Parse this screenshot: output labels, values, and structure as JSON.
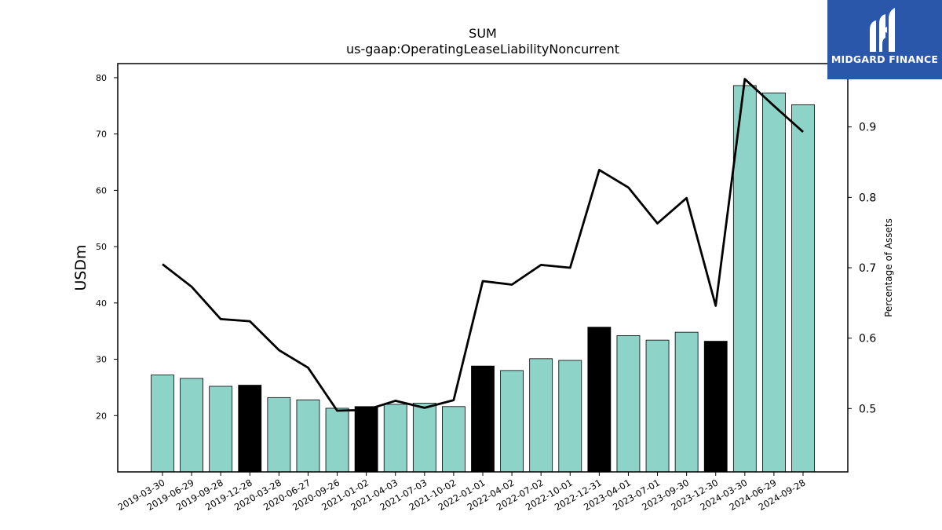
{
  "chart_data": {
    "type": "bar",
    "title": "SUM",
    "subtitle": "us-gaap:OperatingLeaseLiabilityNoncurrent",
    "ylabel": "USDm",
    "y2label": "Percentage of Assets",
    "ylim": [
      10,
      82.5
    ],
    "y2lim": [
      0.41,
      0.99
    ],
    "yticks": [
      20,
      30,
      40,
      50,
      60,
      70,
      80
    ],
    "y2ticks": [
      0.5,
      0.6,
      0.7,
      0.8,
      0.9
    ],
    "categories": [
      "2019-03-30",
      "2019-06-29",
      "2019-09-28",
      "2019-12-28",
      "2020-03-28",
      "2020-06-27",
      "2020-09-26",
      "2021-01-02",
      "2021-04-03",
      "2021-07-03",
      "2021-10-02",
      "2022-01-01",
      "2022-04-02",
      "2022-07-02",
      "2022-10-01",
      "2022-12-31",
      "2023-04-01",
      "2023-07-01",
      "2023-09-30",
      "2023-12-30",
      "2024-03-30",
      "2024-06-29",
      "2024-09-28"
    ],
    "series": [
      {
        "values": [
          27.2,
          26.6,
          25.2,
          25.4,
          23.2,
          22.8,
          21.3,
          21.6,
          22.0,
          22.2,
          21.6,
          28.8,
          28.0,
          30.1,
          29.8,
          35.7,
          34.2,
          33.4,
          34.8,
          33.2,
          78.6,
          77.3,
          75.2
        ],
        "highlight": [
          false,
          false,
          false,
          true,
          false,
          false,
          false,
          true,
          false,
          false,
          false,
          true,
          false,
          false,
          false,
          true,
          false,
          false,
          false,
          true,
          false,
          false,
          false
        ],
        "color": "#8dd3c7",
        "highlight_color": "#000000"
      },
      {
        "axis": "right",
        "type": "line",
        "color": "#000000",
        "values": [
          0.705,
          0.673,
          0.627,
          0.624,
          0.583,
          0.558,
          0.497,
          0.498,
          0.511,
          0.501,
          0.512,
          0.681,
          0.676,
          0.704,
          0.7,
          0.839,
          0.814,
          0.763,
          0.799,
          0.646,
          0.968,
          0.93,
          0.893
        ]
      }
    ],
    "grid": false
  },
  "logo": {
    "text": "MIDGARD FINANCE",
    "icon": "midgard-logo-icon",
    "background": "#2b57ab"
  }
}
